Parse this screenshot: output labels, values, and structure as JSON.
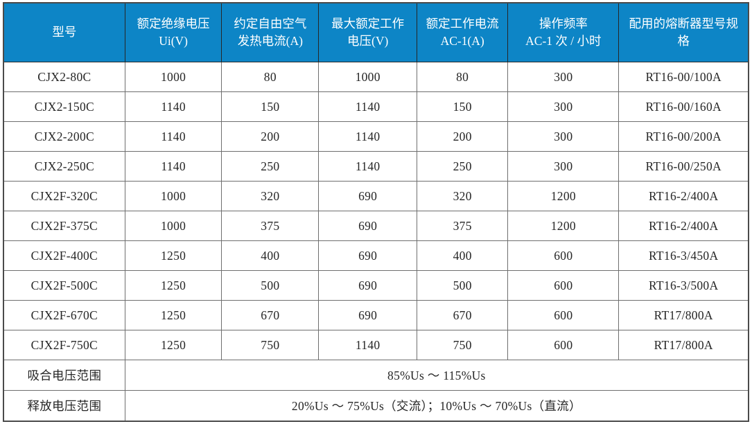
{
  "table": {
    "style": {
      "header_bg": "#0d85c6",
      "header_text_color": "#ffffff",
      "body_text_color": "#262626",
      "grid_line_color": "#6e6e6e",
      "outer_border_color": "#4a4a4a"
    },
    "columns": [
      {
        "label": "型号"
      },
      {
        "label": "额定绝缘电压 Ui(V)"
      },
      {
        "label": "约定自由空气发热电流(A)"
      },
      {
        "label": "最大额定工作电压(V)"
      },
      {
        "label": "额定工作电流 AC-1(A)"
      },
      {
        "label": "操作频率\nAC-1 次 / 小时"
      },
      {
        "label": "配用的熔断器型号规格"
      }
    ],
    "rows": [
      [
        "CJX2-80C",
        "1000",
        "80",
        "1000",
        "80",
        "300",
        "RT16-00/100A"
      ],
      [
        "CJX2-150C",
        "1140",
        "150",
        "1140",
        "150",
        "300",
        "RT16-00/160A"
      ],
      [
        "CJX2-200C",
        "1140",
        "200",
        "1140",
        "200",
        "300",
        "RT16-00/200A"
      ],
      [
        "CJX2-250C",
        "1140",
        "250",
        "1140",
        "250",
        "300",
        "RT16-00/250A"
      ],
      [
        "CJX2F-320C",
        "1000",
        "320",
        "690",
        "320",
        "1200",
        "RT16-2/400A"
      ],
      [
        "CJX2F-375C",
        "1000",
        "375",
        "690",
        "375",
        "1200",
        "RT16-2/400A"
      ],
      [
        "CJX2F-400C",
        "1250",
        "400",
        "690",
        "400",
        "600",
        "RT16-3/450A"
      ],
      [
        "CJX2F-500C",
        "1250",
        "500",
        "690",
        "500",
        "600",
        "RT16-3/500A"
      ],
      [
        "CJX2F-670C",
        "1250",
        "670",
        "690",
        "670",
        "600",
        "RT17/800A"
      ],
      [
        "CJX2F-750C",
        "1250",
        "750",
        "1140",
        "750",
        "600",
        "RT17/800A"
      ]
    ],
    "footer_rows": [
      {
        "label": "吸合电压范围",
        "value": "85%Us ～ 115%Us"
      },
      {
        "label": "释放电压范围",
        "value": "20%Us ～ 75%Us（交流）；10%Us ～ 70%Us（直流）"
      }
    ]
  }
}
